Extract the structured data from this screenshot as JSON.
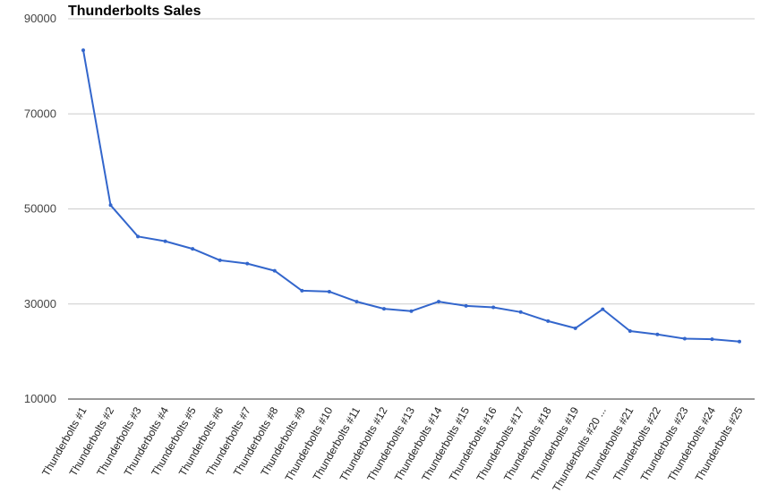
{
  "chart_data": {
    "type": "line",
    "title": "Thunderbolts Sales",
    "xlabel": "",
    "ylabel": "",
    "categories": [
      "Thunderbolts #1",
      "Thunderbolts #2",
      "Thunderbolts #3",
      "Thunderbolts #4",
      "Thunderbolts #5",
      "Thunderbolts #6",
      "Thunderbolts #7",
      "Thunderbolts #8",
      "Thunderbolts #9",
      "Thunderbolts #10",
      "Thunderbolts #11",
      "Thunderbolts #12",
      "Thunderbolts #13",
      "Thunderbolts #14",
      "Thunderbolts #15",
      "Thunderbolts #16",
      "Thunderbolts #17",
      "Thunderbolts #18",
      "Thunderbolts #19",
      "Thunderbolts #20 ...",
      "Thunderbolts #21",
      "Thunderbolts #22",
      "Thunderbolts #23",
      "Thunderbolts #24",
      "Thunderbolts #25"
    ],
    "series": [
      {
        "values": [
          83400,
          50800,
          44200,
          43200,
          41600,
          39200,
          38500,
          37000,
          32800,
          32600,
          30500,
          29000,
          28500,
          30500,
          29600,
          29300,
          28300,
          26400,
          24900,
          28900,
          24300,
          23600,
          22700,
          22600,
          22100
        ],
        "color": "#3366cc"
      }
    ],
    "ylim": [
      10000,
      90000
    ],
    "yticks": [
      "10000",
      "30000",
      "50000",
      "70000",
      "90000"
    ],
    "grid": true,
    "legend": "none"
  }
}
